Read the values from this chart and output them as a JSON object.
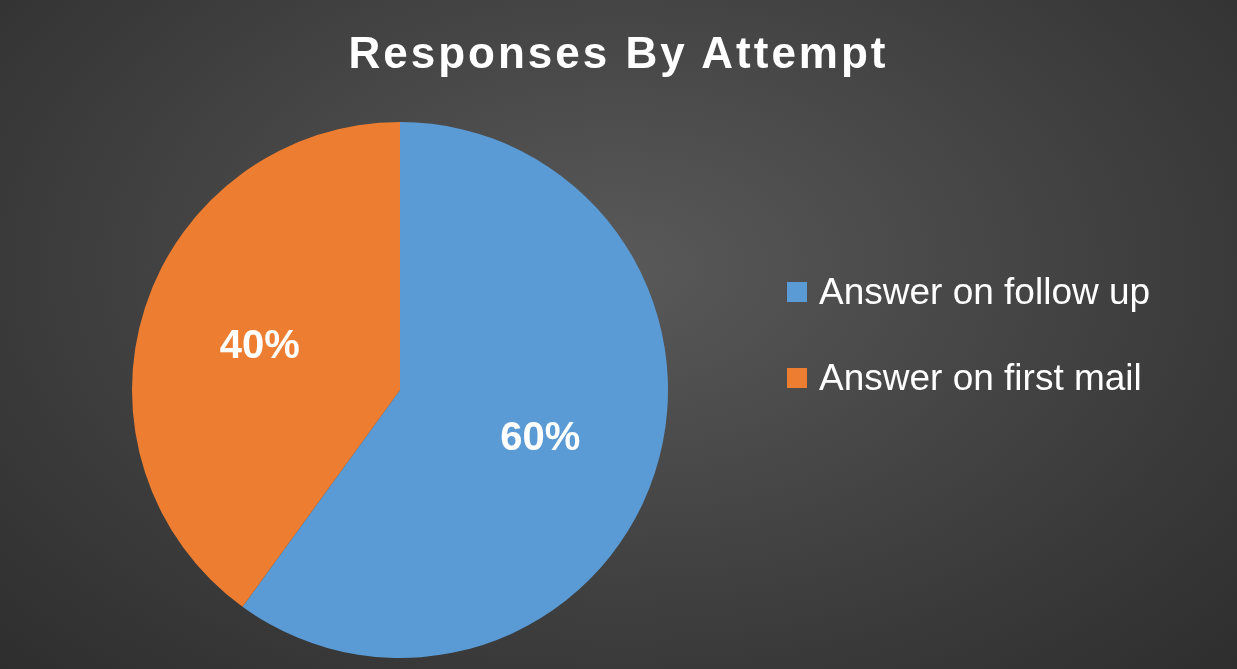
{
  "chart_data": {
    "type": "pie",
    "title": "Responses By Attempt",
    "categories": [
      "Answer on follow up",
      "Answer on first mail"
    ],
    "values": [
      60,
      40
    ],
    "colors": [
      "#5b9bd5",
      "#ed7d31"
    ],
    "value_labels": [
      "60%",
      "40%"
    ],
    "legend": "right"
  }
}
